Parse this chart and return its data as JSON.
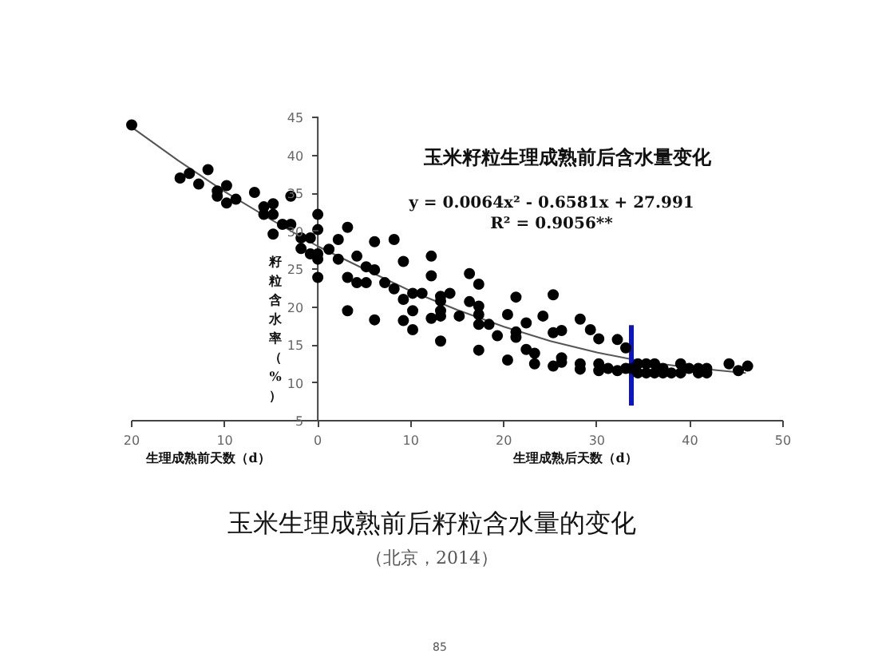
{
  "chart_data": {
    "type": "scatter",
    "title": "玉米籽粒生理成熟前后含水量变化",
    "subtitle": "玉米生理成熟前后籽粒含水量的变化",
    "xlabel": "生理成熟后天数（d）",
    "ylabel": "籽粒含水率（%）",
    "annotations": [
      "生理成熟前天数（d）",
      "y = 0.0064x² - 0.6581x + 27.991",
      "R² = 0.9056**",
      "（北京，2014）",
      "85"
    ],
    "xlim": [
      -20,
      50
    ],
    "ylim": [
      5,
      45
    ],
    "xticks": [
      {
        "value": -20,
        "label": "20"
      },
      {
        "value": -10,
        "label": "10"
      },
      0,
      10,
      20,
      30,
      40,
      50
    ],
    "yticks": [
      5,
      10,
      15,
      20,
      25,
      30,
      35,
      40,
      45
    ],
    "grid": false,
    "marker": "circle",
    "series": [
      {
        "color": "#000000",
        "x": [
          -20,
          -14.8,
          -13.8,
          -12.8,
          -11.8,
          -10.8,
          -10.8,
          -9.8,
          -9.8,
          -8.8,
          -6.8,
          -5.8,
          -5.8,
          -4.8,
          -4.8,
          -4.8,
          -3.8,
          -2.9,
          -2.9,
          -1.8,
          -1.8,
          -0.8,
          -0.8,
          0,
          0,
          0,
          0,
          0,
          1.2,
          2.2,
          2.2,
          3.2,
          3.2,
          4.2,
          4.2,
          5.2,
          5.2,
          6.1,
          6.1,
          7.2,
          8.2,
          8.2,
          9.2,
          9.2,
          10.2,
          11.2,
          12.2,
          12.2,
          13.2,
          3.2,
          6.1,
          9.2,
          10.2,
          10.2,
          12.2,
          13.2,
          13.2,
          13.2,
          13.2,
          14.2,
          15.2,
          16.3,
          16.3,
          17.3,
          17.3,
          17.3,
          17.3,
          17.3,
          18.4,
          19.3,
          20.4,
          20.4,
          21.3,
          21.3,
          21.3,
          22.4,
          22.4,
          23.3,
          23.3,
          24.2,
          25.3,
          25.3,
          25.3,
          26.2,
          26.2,
          26.2,
          28.2,
          28.2,
          28.2,
          29.3,
          30.2,
          30.2,
          30.2,
          31.2,
          32.2,
          32.2,
          33.1,
          33.1,
          33.7,
          34.4,
          34.4,
          35.3,
          35.3,
          36.2,
          36.2,
          37.1,
          37.1,
          38.0,
          39.0,
          39.0,
          39.9,
          40.9,
          40.9,
          41.8,
          41.8,
          44.2,
          45.2,
          46.2
        ],
        "values": [
          44,
          37.0,
          37.6,
          36.2,
          38.1,
          35.3,
          34.6,
          36.0,
          33.7,
          34.2,
          35.1,
          33.2,
          32.2,
          33.6,
          32.2,
          29.6,
          30.9,
          30.9,
          34.6,
          29.1,
          27.7,
          29.1,
          27.0,
          32.2,
          30.2,
          27.0,
          26.3,
          23.9,
          27.6,
          28.9,
          26.3,
          30.5,
          23.9,
          26.7,
          23.2,
          25.3,
          23.2,
          28.6,
          24.9,
          23.2,
          28.9,
          22.4,
          26.0,
          21.0,
          21.8,
          21.8,
          26.7,
          24.1,
          20.8,
          19.5,
          18.3,
          18.2,
          17.0,
          19.5,
          18.5,
          15.5,
          18.8,
          21.4,
          19.5,
          21.8,
          18.8,
          24.4,
          20.7,
          23.0,
          20.1,
          19.0,
          17.7,
          14.3,
          17.7,
          16.2,
          19.0,
          13.0,
          21.3,
          16.7,
          16.0,
          17.9,
          14.4,
          13.9,
          12.5,
          18.8,
          21.6,
          16.6,
          12.2,
          16.9,
          13.3,
          12.7,
          18.4,
          12.5,
          11.8,
          17.0,
          15.8,
          12.5,
          11.6,
          11.9,
          15.7,
          11.6,
          14.6,
          11.9,
          11.9,
          12.5,
          11.3,
          12.5,
          11.3,
          12.5,
          11.3,
          11.9,
          11.3,
          11.3,
          12.5,
          11.3,
          11.9,
          11.9,
          11.3,
          11.9,
          11.3,
          12.5,
          11.6,
          12.2
        ]
      },
      {
        "type": "line",
        "color": "#555555",
        "marker": "none",
        "x": [
          -20,
          -15,
          -10,
          -5,
          0,
          5,
          10,
          15,
          20,
          25,
          30,
          35,
          40,
          46
        ],
        "values": [
          43.7,
          39.3,
          35.2,
          31.5,
          28.0,
          25.0,
          22.1,
          19.6,
          17.4,
          15.5,
          14.0,
          12.8,
          12.0,
          11.3
        ]
      },
      {
        "type": "line",
        "color": "#0a14c8",
        "marker": "none",
        "x": [
          33.7,
          33.7
        ],
        "values": [
          7.0,
          17.6
        ]
      }
    ]
  }
}
